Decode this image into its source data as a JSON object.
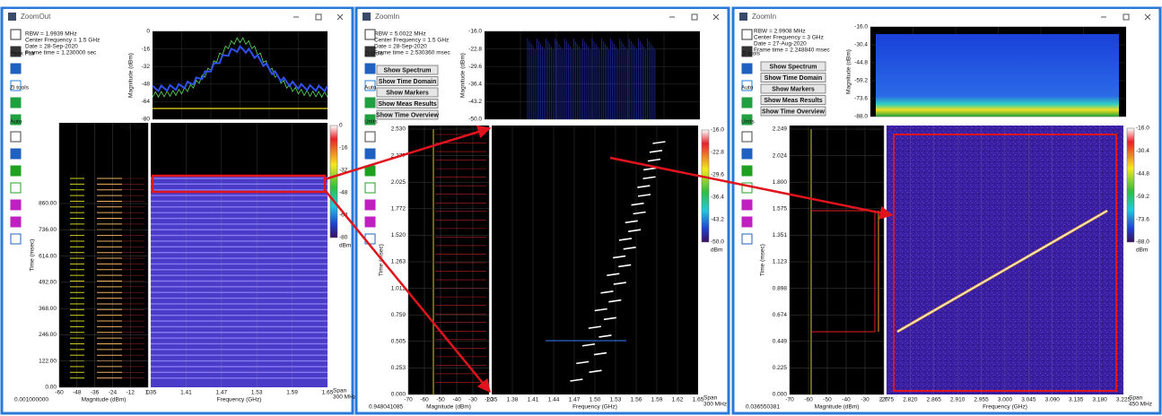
{
  "windows": [
    {
      "title": "ZoomOut",
      "info": [
        "RBW = 1.9939 MHz",
        "Center Frequency = 1.5 GHz",
        "Date = 28-Sep-2020",
        "Frame time = 1.230000 sec"
      ],
      "tools": [
        "Peak Pair",
        "Zi tools",
        "Auto"
      ],
      "buttons": [],
      "spectrum": {
        "y_label": "Magnitude (dBm)",
        "yticks": [
          "0",
          "-16",
          "-32",
          "-48",
          "-64",
          "-80"
        ]
      },
      "colorbar": {
        "ticks": [
          "0",
          "-16",
          "-32",
          "-48",
          "-64",
          "-80"
        ],
        "unit": "dBm"
      },
      "legend": [
        "Avg",
        "Max"
      ],
      "time_axis": {
        "label": "Time (msec)",
        "ticks": [
          "860.00",
          "736.00",
          "614.00",
          "492.00",
          "368.00",
          "246.00",
          "122.00",
          "0.00"
        ]
      },
      "magnitude_axis": {
        "label": "Magnitude (dBm)",
        "ticks": [
          "-60",
          "-48",
          "-36",
          "-24",
          "-12",
          "0"
        ]
      },
      "frequency_axis": {
        "label": "Frequency (GHz)",
        "ticks": [
          "1.35",
          "1.41",
          "1.47",
          "1.53",
          "1.59",
          "1.65"
        ]
      },
      "span": [
        "Span",
        "300 MHz"
      ],
      "start_time": "0.001000000"
    },
    {
      "title": "ZoomIn",
      "info": [
        "RBW = 5.0022 MHz",
        "Center Frequency = 1.5 GHz",
        "Date = 28-Sep-2020",
        "Frame time = 2.530360 msec"
      ],
      "tools": [
        "Zi tools",
        "Auto",
        "Units"
      ],
      "buttons": [
        "Show Spectrum",
        "Show Time Domain",
        "Show Markers",
        "Show Meas Results",
        "Show Time Overview"
      ],
      "spectrum": {
        "y_label": "Magnitude (dBm)",
        "yticks": [
          "-16.0",
          "-22.8",
          "-29.6",
          "-36.4",
          "-43.2",
          "-50.0"
        ]
      },
      "colorbar": {
        "ticks": [
          "-16.0",
          "-22.8",
          "-29.6",
          "-36.4",
          "-43.2",
          "-50.0"
        ],
        "unit": "dBm"
      },
      "legend": [
        "Avg",
        "Max"
      ],
      "time_axis": {
        "label": "Time (msec)",
        "ticks": [
          "2.530",
          "2.277",
          "2.025",
          "1.772",
          "1.520",
          "1.263",
          "1.012",
          "0.759",
          "0.505",
          "0.253",
          "0.000"
        ]
      },
      "magnitude_axis": {
        "label": "Magnitude (dBm)",
        "ticks": [
          "-70",
          "-60",
          "-50",
          "-40",
          "-30",
          "-20"
        ]
      },
      "frequency_axis": {
        "label": "Frequency (GHz)",
        "ticks": [
          "1.35",
          "1.38",
          "1.41",
          "1.44",
          "1.47",
          "1.50",
          "1.53",
          "1.56",
          "1.59",
          "1.62",
          "1.65"
        ]
      },
      "span": [
        "Span",
        "300 MHz"
      ],
      "start_time": "0.948041085"
    },
    {
      "title": "ZoomIn",
      "info": [
        "RBW = 2.9908 MHz",
        "Center Frequency = 3 GHz",
        "Date = 27-Aug-2020",
        "Frame time = 2.248840 msec"
      ],
      "tools": [
        "Zi tools",
        "Auto",
        "Units"
      ],
      "buttons": [
        "Show Spectrum",
        "Show Time Domain",
        "Show Markers",
        "Show Meas Results",
        "Show Time Overview"
      ],
      "spectrum": {
        "y_label": "Magnitude (dBm)",
        "yticks": [
          "-16.0",
          "-30.4",
          "-44.8",
          "-59.2",
          "-73.6",
          "-88.0"
        ]
      },
      "colorbar": {
        "ticks": [
          "-16.0",
          "-30.4",
          "-44.8",
          "-59.2",
          "-73.6",
          "-88.0"
        ],
        "unit": "dBm"
      },
      "legend": [
        "Avg",
        "Max"
      ],
      "time_axis": {
        "label": "Time (msec)",
        "ticks": [
          "2.249",
          "2.024",
          "1.800",
          "1.575",
          "1.351",
          "1.123",
          "0.898",
          "0.674",
          "0.449",
          "0.225",
          "0.000"
        ]
      },
      "magnitude_axis": {
        "label": "Magnitude (dBm)",
        "ticks": [
          "-70",
          "-60",
          "-50",
          "-40",
          "-30",
          "-20"
        ]
      },
      "frequency_axis": {
        "label": "Frequency (GHz)",
        "ticks": [
          "2.775",
          "2.820",
          "2.865",
          "2.910",
          "2.955",
          "3.000",
          "3.045",
          "3.090",
          "3.135",
          "3.180",
          "3.225"
        ]
      },
      "span": [
        "Span",
        "450 MHz"
      ],
      "start_time": "0.036550381"
    }
  ]
}
